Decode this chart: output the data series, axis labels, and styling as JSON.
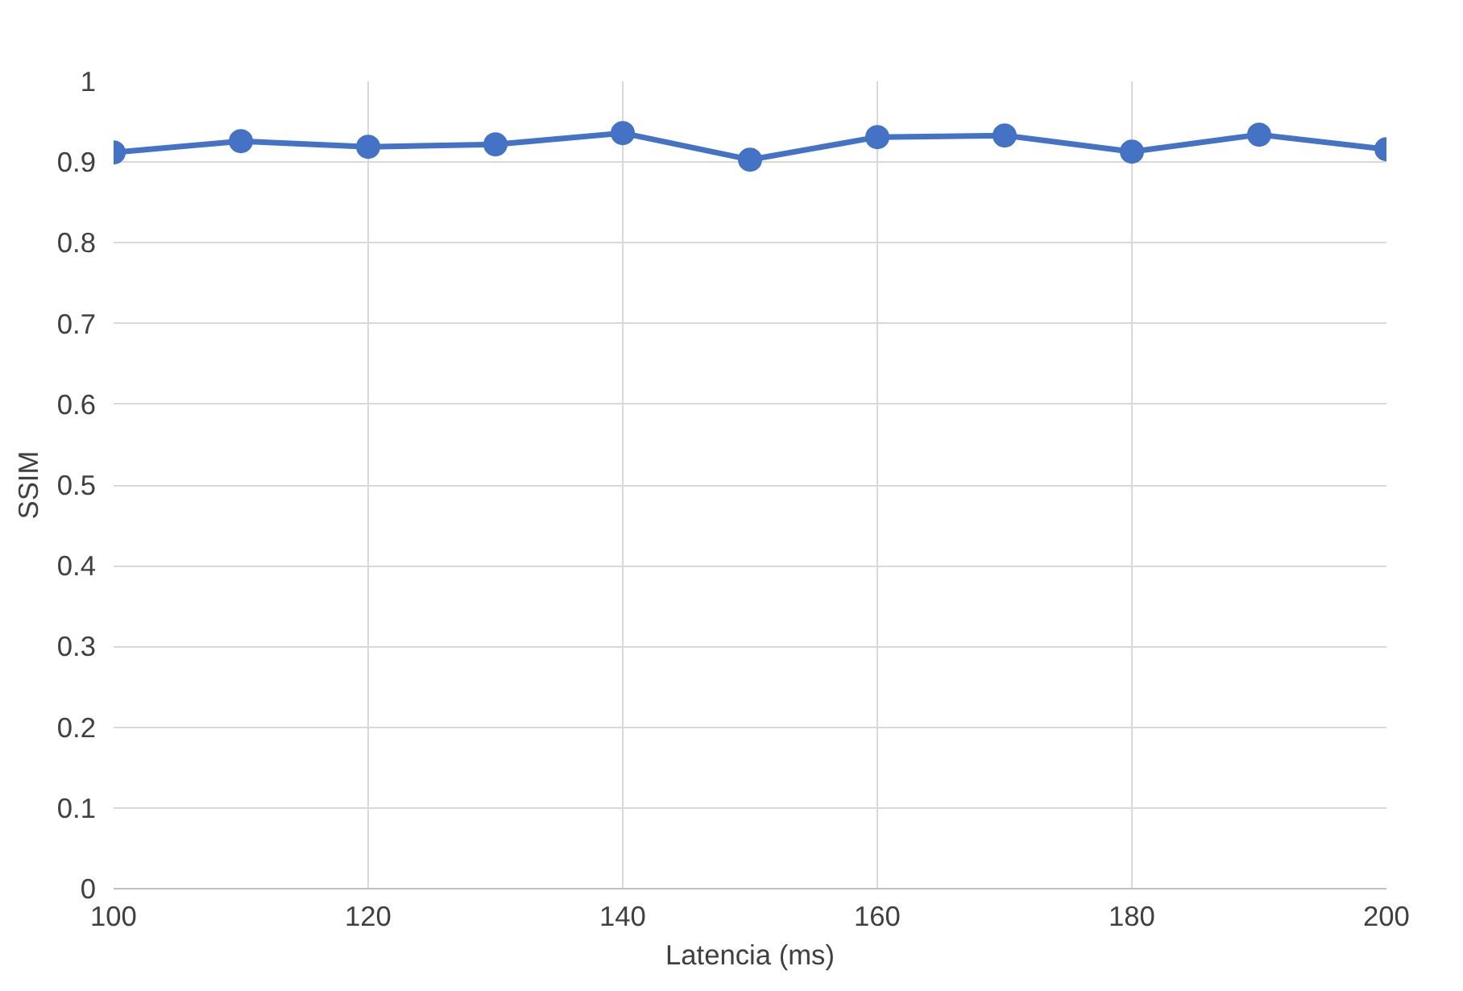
{
  "chart_data": {
    "type": "line",
    "xlabel": "Latencia (ms)",
    "ylabel": "SSIM",
    "x": [
      100,
      110,
      120,
      130,
      140,
      150,
      160,
      170,
      180,
      190,
      200
    ],
    "series": [
      {
        "color": "#4472c4",
        "values": [
          0.912,
          0.926,
          0.919,
          0.922,
          0.936,
          0.903,
          0.931,
          0.933,
          0.913,
          0.934,
          0.916
        ]
      }
    ],
    "xlim": [
      100,
      200
    ],
    "xticks": [
      100,
      120,
      140,
      160,
      180,
      200
    ],
    "ylim": [
      0,
      1
    ],
    "yticks": [
      0,
      0.1,
      0.2,
      0.3,
      0.4,
      0.5,
      0.6,
      0.7,
      0.8,
      0.9,
      1
    ],
    "grid": true,
    "marker": "circle",
    "line_style": "solid"
  }
}
